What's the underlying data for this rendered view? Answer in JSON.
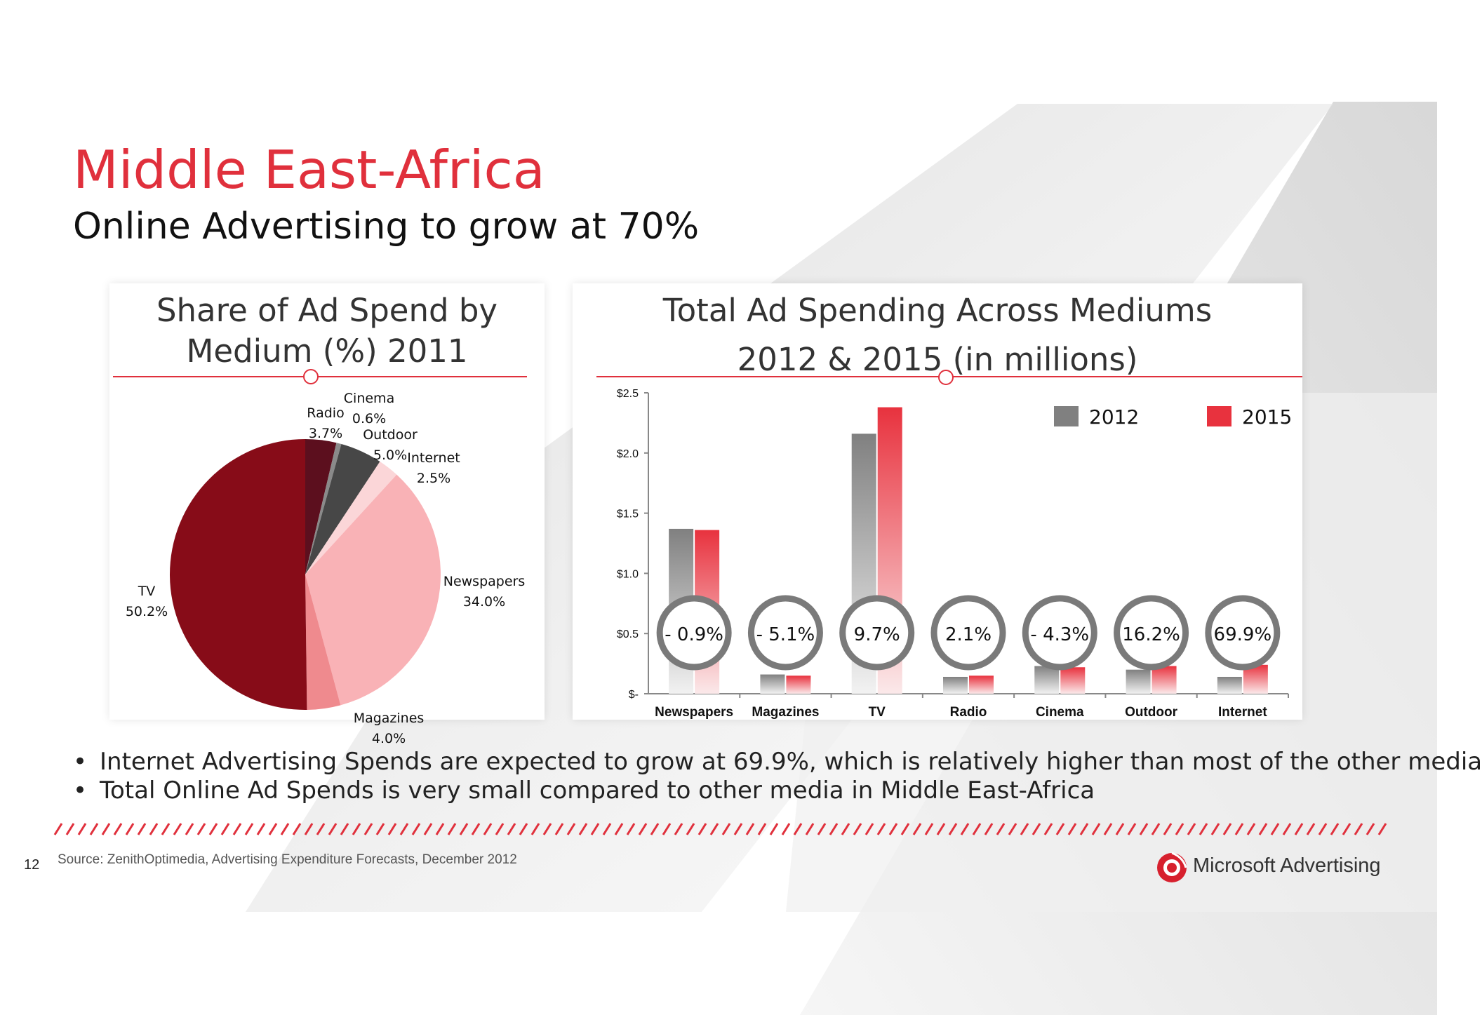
{
  "slide": {
    "title": "Middle East-Africa",
    "subtitle": "Online Advertising to grow at 70%",
    "title_color": "#e0303c"
  },
  "bullets": [
    "Internet Advertising Spends are expected to grow at 69.9%, which is relatively higher than most of the other media",
    "Total Online Ad Spends is very small compared to other media in Middle East-Africa"
  ],
  "footer": {
    "page_number": "12",
    "source": "Source: ZenithOptimedia, Advertising Expenditure Forecasts, December 2012",
    "brand": "Microsoft Advertising",
    "brand_icon": "microsoft-advertising-logo-icon"
  },
  "chart_data": [
    {
      "type": "pie",
      "title_lines": [
        "Share of Ad Spend by",
        "Medium (%) 2011"
      ],
      "slices": [
        {
          "name": "Radio",
          "value": 3.7,
          "label": "3.7%",
          "color": "#5c0f1e"
        },
        {
          "name": "Cinema",
          "value": 0.6,
          "label": "0.6%",
          "color": "#8a8a8a"
        },
        {
          "name": "Outdoor",
          "value": 5.0,
          "label": "5.0%",
          "color": "#474747"
        },
        {
          "name": "Internet",
          "value": 2.5,
          "label": "2.5%",
          "color": "#fbd6d8"
        },
        {
          "name": "Newspapers",
          "value": 34.0,
          "label": "34.0%",
          "color": "#f9b2b6"
        },
        {
          "name": "Magazines",
          "value": 4.0,
          "label": "4.0%",
          "color": "#ef8a8e"
        },
        {
          "name": "TV",
          "value": 50.2,
          "label": "50.2%",
          "color": "#870c18"
        }
      ]
    },
    {
      "type": "bar",
      "title_lines": [
        "Total Ad Spending Across Mediums",
        "2012 & 2015 (in millions)"
      ],
      "categories": [
        "Newspapers",
        "Magazines",
        "TV",
        "Radio",
        "Cinema",
        "Outdoor",
        "Internet"
      ],
      "series": [
        {
          "name": "2012",
          "values": [
            1.37,
            0.16,
            2.16,
            0.14,
            0.23,
            0.2,
            0.14
          ],
          "color": "#808080"
        },
        {
          "name": "2015",
          "values": [
            1.36,
            0.15,
            2.38,
            0.15,
            0.22,
            0.23,
            0.24
          ],
          "color": "#e8323e"
        }
      ],
      "growth_labels": [
        "- 0.9%",
        "- 5.1%",
        "9.7%",
        "2.1%",
        "- 4.3%",
        "16.2%",
        "69.9%"
      ],
      "y_ticks": [
        {
          "value": 0,
          "label": "$-"
        },
        {
          "value": 0.5,
          "label": "$0.5"
        },
        {
          "value": 1.0,
          "label": "$1.0"
        },
        {
          "value": 1.5,
          "label": "$1.5"
        },
        {
          "value": 2.0,
          "label": "$2.0"
        },
        {
          "value": 2.5,
          "label": "$2.5"
        }
      ],
      "ylim": [
        0,
        2.5
      ],
      "legend_position": "top-right",
      "grid": false
    }
  ]
}
